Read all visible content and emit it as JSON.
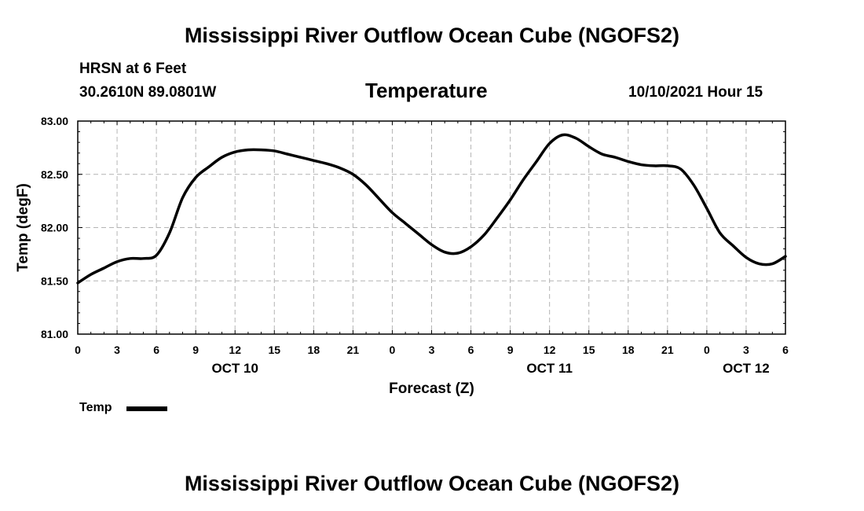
{
  "header": {
    "title": "Mississippi River Outflow Ocean Cube (NGOFS2)",
    "station": "HRSN at 6 Feet",
    "coords": "30.2610N  89.0801W",
    "datetime": "10/10/2021 Hour 15"
  },
  "footer": {
    "title": "Mississippi River Outflow Ocean Cube (NGOFS2)"
  },
  "legend": {
    "label": "Temp",
    "color": "#000000"
  },
  "chart_data": {
    "type": "line",
    "title": "Temperature",
    "xlabel": "Forecast (Z)",
    "ylabel": "Temp (degF)",
    "xlim": [
      0,
      54
    ],
    "ylim": [
      81.0,
      83.0
    ],
    "grid": true,
    "legend_position": "bottom-left",
    "y_ticks": [
      "81.00",
      "81.50",
      "82.00",
      "82.50",
      "83.00"
    ],
    "x_tick_values": [
      0,
      3,
      6,
      9,
      12,
      15,
      18,
      21,
      24,
      27,
      30,
      33,
      36,
      39,
      42,
      45,
      48,
      51,
      54
    ],
    "x_tick_labels": [
      "0",
      "3",
      "6",
      "9",
      "12",
      "15",
      "18",
      "21",
      "0",
      "3",
      "6",
      "9",
      "12",
      "15",
      "18",
      "21",
      "0",
      "3",
      "6"
    ],
    "date_labels": [
      {
        "x": 12,
        "label": "OCT 10"
      },
      {
        "x": 36,
        "label": "OCT 11"
      },
      {
        "x": 51,
        "label": "OCT 12"
      }
    ],
    "series": [
      {
        "name": "Temp",
        "x": [
          0,
          1,
          2,
          3,
          4,
          5,
          6,
          7,
          8,
          9,
          10,
          11,
          12,
          13,
          14,
          15,
          16,
          17,
          18,
          19,
          20,
          21,
          22,
          23,
          24,
          25,
          26,
          27,
          28,
          29,
          30,
          31,
          32,
          33,
          34,
          35,
          36,
          37,
          38,
          39,
          40,
          41,
          42,
          43,
          44,
          45,
          46,
          47,
          48,
          49,
          50,
          51,
          52,
          53,
          54
        ],
        "values": [
          81.48,
          81.56,
          81.62,
          81.68,
          81.71,
          81.71,
          81.74,
          81.95,
          82.28,
          82.47,
          82.57,
          82.66,
          82.71,
          82.73,
          82.73,
          82.72,
          82.69,
          82.66,
          82.63,
          82.6,
          82.56,
          82.5,
          82.4,
          82.27,
          82.14,
          82.04,
          81.94,
          81.84,
          81.77,
          81.76,
          81.82,
          81.93,
          82.09,
          82.26,
          82.45,
          82.62,
          82.79,
          82.87,
          82.84,
          82.76,
          82.69,
          82.66,
          82.62,
          82.59,
          82.58,
          82.58,
          82.55,
          82.4,
          82.18,
          81.95,
          81.83,
          81.72,
          81.66,
          81.66,
          81.73
        ]
      }
    ]
  }
}
